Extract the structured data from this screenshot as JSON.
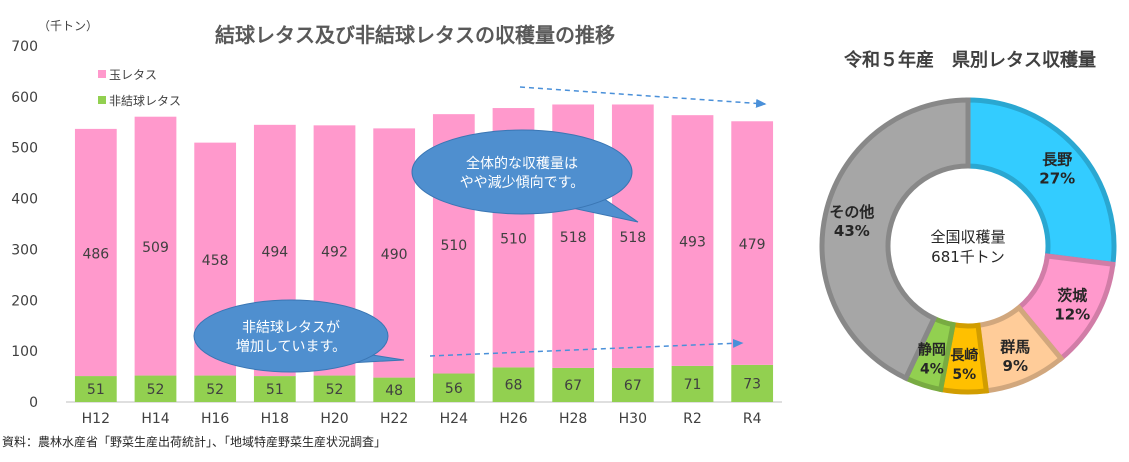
{
  "source_note": "資料：農林水産省「野菜生産出荷統計」、「地域特産野菜生産状況調査」",
  "chart_data": [
    {
      "type": "bar",
      "stacked": true,
      "title": "結球レタス及び非結球レタスの収穫量の推移",
      "unit_label": "（千トン）",
      "categories": [
        "H12",
        "H14",
        "H16",
        "H18",
        "H20",
        "H22",
        "H24",
        "H26",
        "H28",
        "H30",
        "R2",
        "R4"
      ],
      "ylim": [
        0,
        700
      ],
      "yticks": [
        0,
        100,
        200,
        300,
        400,
        500,
        600,
        700
      ],
      "series": [
        {
          "name": "非結球レタス",
          "color": "#92d050",
          "values": [
            51,
            52,
            52,
            51,
            52,
            48,
            56,
            68,
            67,
            67,
            71,
            73
          ]
        },
        {
          "name": "玉レタス",
          "color": "#ff99cc",
          "values": [
            486,
            509,
            458,
            494,
            492,
            490,
            510,
            510,
            518,
            518,
            493,
            479
          ]
        }
      ],
      "legend_order": [
        "玉レタス",
        "非結球レタス"
      ],
      "legend_position": "top-left",
      "grid": false,
      "annotations": [
        {
          "id": "callout-total",
          "lines": [
            "全体的な収穫量は",
            "やや減少傾向です。"
          ]
        },
        {
          "id": "callout-nonheading",
          "lines": [
            "非結球レタスが",
            "増加しています。"
          ]
        }
      ]
    },
    {
      "type": "pie",
      "donut": true,
      "title": "令和５年産　県別レタス収穫量",
      "center_label": [
        "全国収穫量",
        "681千トン"
      ],
      "slices": [
        {
          "name": "長野",
          "value": 27,
          "label": "27%",
          "color": "#33ccff"
        },
        {
          "name": "茨城",
          "value": 12,
          "label": "12%",
          "color": "#ff99cc"
        },
        {
          "name": "群馬",
          "value": 9,
          "label": "9%",
          "color": "#ffcc99"
        },
        {
          "name": "長崎",
          "value": 5,
          "label": "5%",
          "color": "#ffc000"
        },
        {
          "name": "静岡",
          "value": 4,
          "label": "4%",
          "color": "#92d050"
        },
        {
          "name": "その他",
          "value": 43,
          "label": "43%",
          "color": "#a6a6a6"
        }
      ]
    }
  ]
}
